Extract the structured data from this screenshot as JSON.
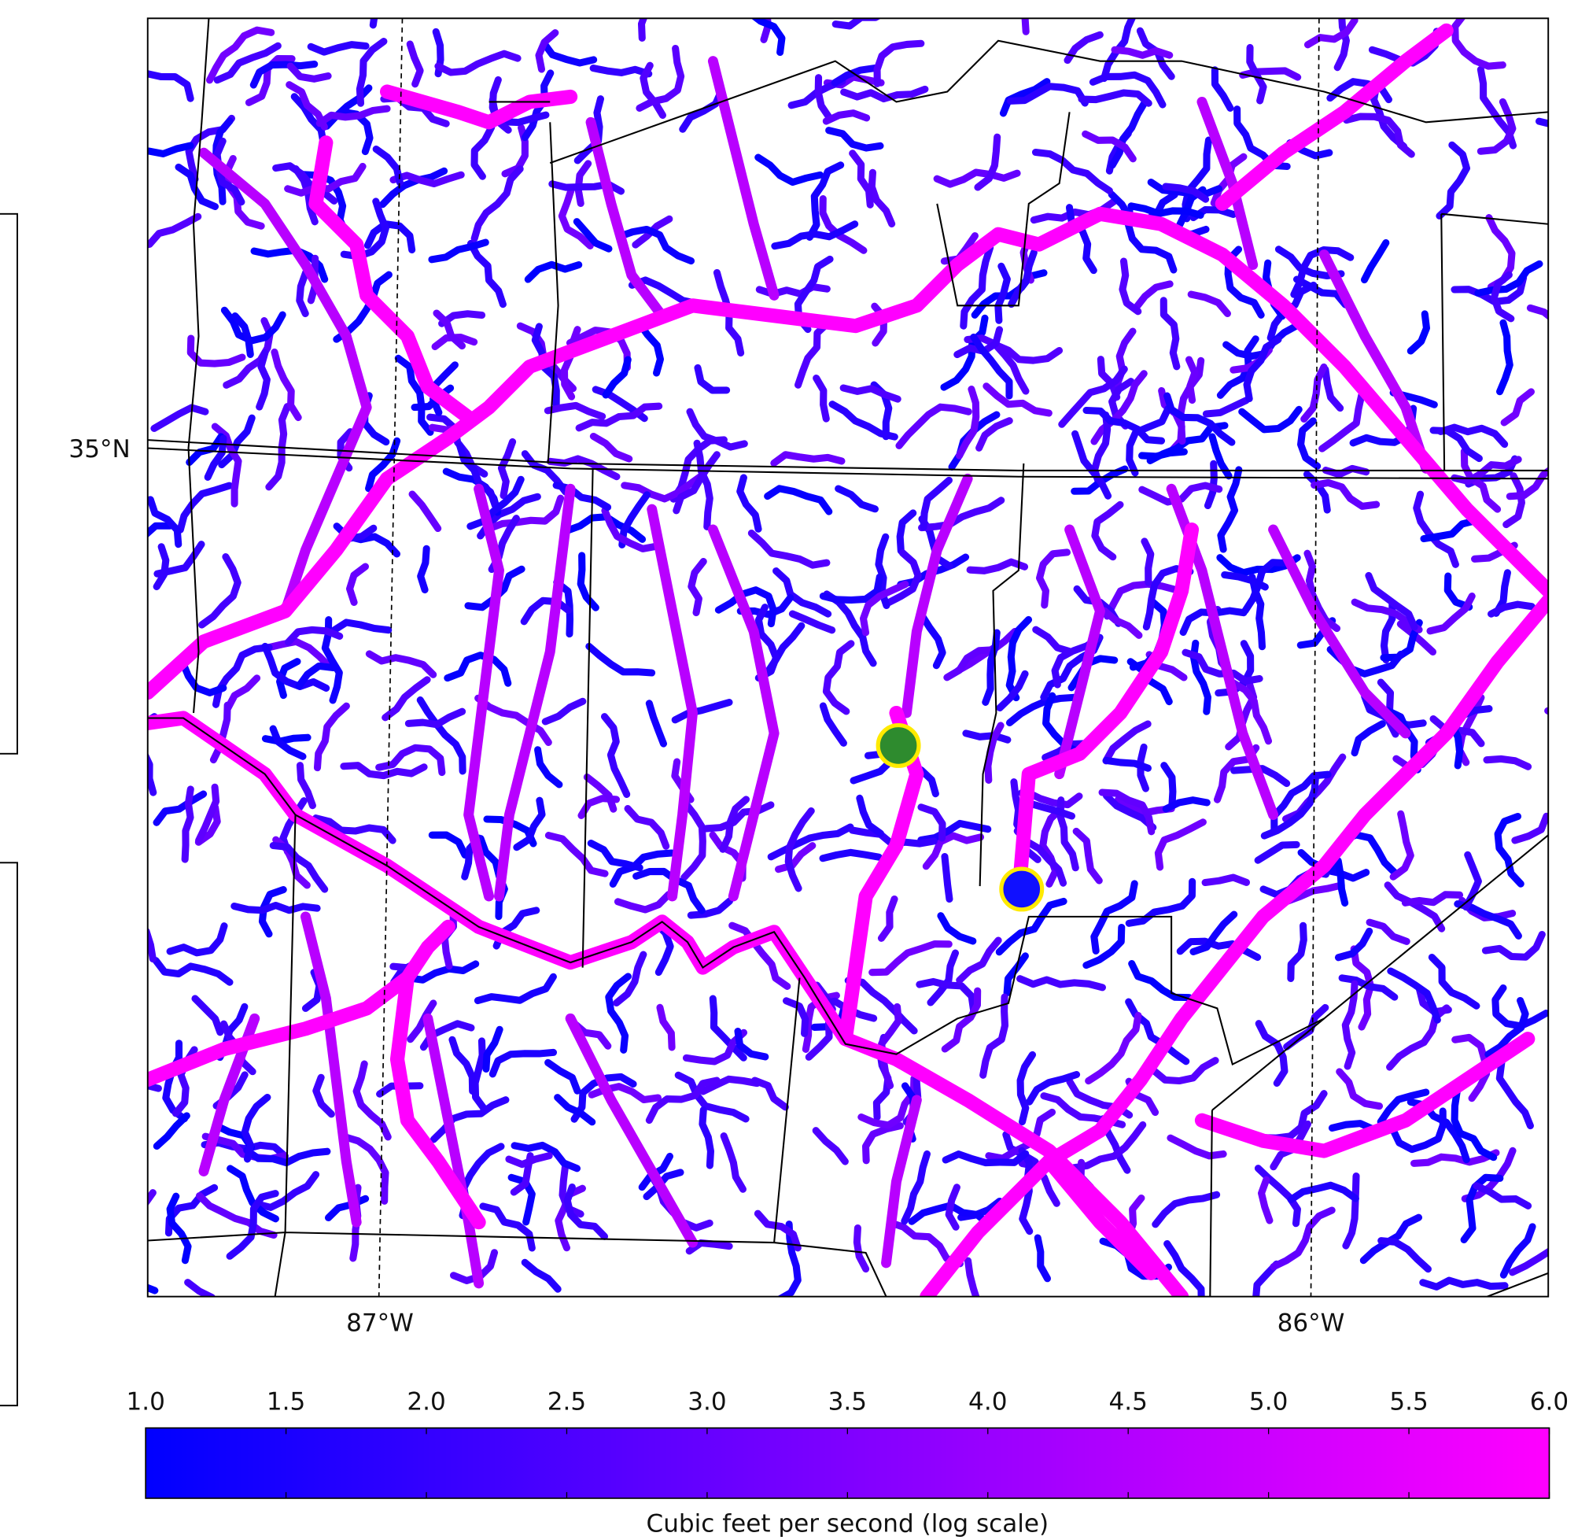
{
  "map": {
    "latitude_label": "35°N",
    "longitude_labels": [
      "87°W",
      "86°W"
    ],
    "colorbar": {
      "range": [
        1,
        6
      ],
      "ticks": [
        {
          "value": 1,
          "label": "1.0"
        },
        {
          "value": 1.5,
          "label": "1.5"
        },
        {
          "value": 2,
          "label": "2.0"
        },
        {
          "value": 2.5,
          "label": "2.5"
        },
        {
          "value": 3,
          "label": "3.0"
        },
        {
          "value": 3.5,
          "label": "3.5"
        },
        {
          "value": 4,
          "label": "4.0"
        },
        {
          "value": 4.5,
          "label": "4.5"
        },
        {
          "value": 5,
          "label": "5.0"
        },
        {
          "value": 5.5,
          "label": "5.5"
        },
        {
          "value": 6,
          "label": "6.0"
        }
      ],
      "label": "Cubic feet per second (log scale)",
      "colors": [
        "#0000ff",
        "#ff00ff"
      ]
    }
  }
}
